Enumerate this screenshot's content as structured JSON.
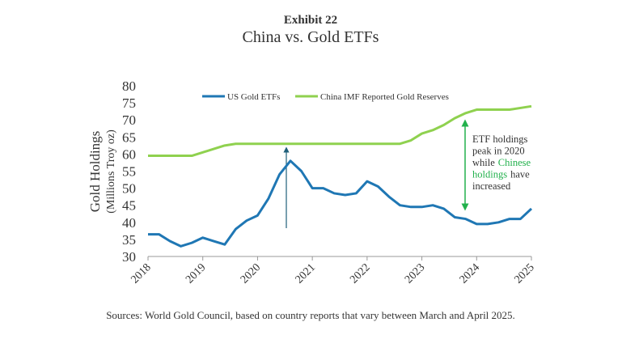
{
  "chart_data": {
    "type": "line",
    "supertitle": "Exhibit 22",
    "title": "China vs. Gold ETFs",
    "ylabel": [
      "Gold Holdings",
      "(Millions Troy oz)"
    ],
    "source": "Sources: World Gold Council, based on country reports that vary between March and April 2025.",
    "x": [
      2018.0,
      2018.2,
      2018.4,
      2018.6,
      2018.8,
      2019.0,
      2019.2,
      2019.4,
      2019.6,
      2019.8,
      2020.0,
      2020.2,
      2020.4,
      2020.6,
      2020.8,
      2021.0,
      2021.2,
      2021.4,
      2021.6,
      2021.8,
      2022.0,
      2022.2,
      2022.4,
      2022.6,
      2022.8,
      2023.0,
      2023.2,
      2023.4,
      2023.6,
      2023.8,
      2024.0,
      2024.2,
      2024.4,
      2024.6,
      2024.8,
      2025.0
    ],
    "series": [
      {
        "name": "US Gold ETFs",
        "color": "#1f77b4",
        "values": [
          36.5,
          36.5,
          34.5,
          33,
          34,
          35.5,
          34.5,
          33.5,
          38,
          40.5,
          42,
          47,
          54,
          58,
          55,
          50,
          50,
          48.5,
          48,
          48.5,
          52,
          50.5,
          47.5,
          45,
          44.5,
          44.5,
          45,
          44,
          41.5,
          41,
          39.5,
          39.5,
          40,
          41,
          41,
          44
        ]
      },
      {
        "name": "China IMF Reported Gold Reserves",
        "color": "#8fd14f",
        "values": [
          59.5,
          59.5,
          59.5,
          59.5,
          59.5,
          60.5,
          61.5,
          62.5,
          63,
          63,
          63,
          63,
          63,
          63,
          63,
          63,
          63,
          63,
          63,
          63,
          63,
          63,
          63,
          63,
          64,
          66,
          67,
          68.5,
          70.5,
          72,
          73,
          73,
          73,
          73,
          73.5,
          74
        ]
      }
    ],
    "xlim": [
      2018,
      2025
    ],
    "xticks": [
      2018,
      2019,
      2020,
      2021,
      2022,
      2023,
      2024,
      2025
    ],
    "ylim": [
      30,
      80
    ],
    "yticks": [
      30,
      35,
      40,
      45,
      50,
      55,
      60,
      65,
      70,
      75,
      80
    ],
    "annotation": [
      [
        {
          "text": "ETF holdings",
          "color": "#333333"
        }
      ],
      [
        {
          "text": "peak in 2020",
          "color": "#333333"
        }
      ],
      [
        {
          "text": "while",
          "color": "#333333"
        },
        {
          "text": "Chinese",
          "color": "#22b14c"
        }
      ],
      [
        {
          "text": "holdings",
          "color": "#22b14c"
        },
        {
          "text": "have",
          "color": "#333333"
        }
      ],
      [
        {
          "text": "increased",
          "color": "#333333"
        }
      ]
    ]
  }
}
